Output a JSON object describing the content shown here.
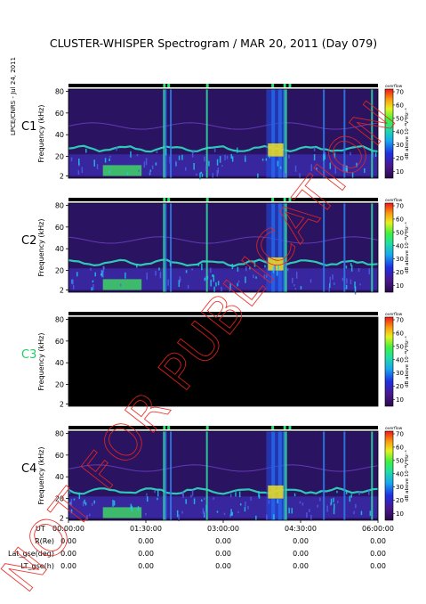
{
  "title": "CLUSTER-WHISPER Spectrogram / MAR 20, 2011 (Day 079)",
  "side_note": "LPCE/CNRS - Jul 24, 2011",
  "watermark": "NOT FOR PUBLICATION",
  "colors": {
    "background": "#ffffff",
    "spectrogram_base": "#2a1360",
    "watermark": "#e8261f",
    "label_default": "#000000",
    "label_inactive": "#22cc66"
  },
  "chart_data": {
    "type": "heatmap",
    "x": {
      "label": "UT",
      "range_minutes": [
        0,
        360
      ],
      "tick_minutes": [
        0,
        90,
        180,
        270,
        360
      ],
      "tick_labels": [
        "00:00:00",
        "01:30:00",
        "03:00:00",
        "04:30:00",
        "06:00:00"
      ]
    },
    "panels": [
      {
        "name": "C1",
        "active": true,
        "ylabel": "Frequency (kHz)",
        "yticks": [
          2,
          20,
          40,
          60,
          80
        ],
        "ylim": [
          0,
          82
        ]
      },
      {
        "name": "C2",
        "active": true,
        "ylabel": "Frequency (kHz)",
        "yticks": [
          2,
          20,
          40,
          60,
          80
        ],
        "ylim": [
          0,
          82
        ]
      },
      {
        "name": "C3",
        "active": false,
        "ylabel": "Frequency (kHz)",
        "yticks": [
          2,
          20,
          40,
          60,
          80
        ],
        "ylim": [
          0,
          82
        ]
      },
      {
        "name": "C4",
        "active": true,
        "ylabel": "Frequency (kHz)",
        "yticks": [
          2,
          20,
          40,
          60,
          80
        ],
        "ylim": [
          0,
          82
        ]
      }
    ],
    "colorbar": {
      "label": "dB above 10⁻⁸V²Hz⁻¹",
      "top_label": "overflow",
      "ticks": [
        10,
        20,
        30,
        40,
        50,
        60,
        70
      ],
      "range": [
        5,
        72
      ]
    },
    "ephemeris": {
      "rows": [
        {
          "label": "R(Re)",
          "values": [
            "0.00",
            "0.00",
            "0.00",
            "0.00",
            "0.00"
          ]
        },
        {
          "label": "Lat_gse(deg)",
          "values": [
            "0.00",
            "0.00",
            "0.00",
            "0.00",
            "0.00"
          ]
        },
        {
          "label": "LT_gse(h)",
          "values": [
            "0.00",
            "0.00",
            "0.00",
            "0.00",
            "0.00"
          ]
        }
      ]
    }
  }
}
